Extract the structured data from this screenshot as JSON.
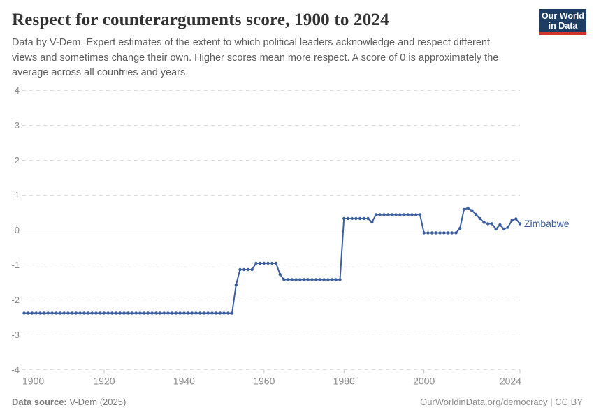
{
  "header": {
    "title": "Respect for counterarguments score, 1900 to 2024",
    "subtitle_lines": [
      "Data by V-Dem. Expert estimates of the extent to which political leaders acknowledge and respect different",
      "views and sometimes change their own. Higher scores mean more respect. A score of 0 is approximately the",
      "average across all countries and years."
    ],
    "logo": {
      "line1": "Our World",
      "line2": "in Data",
      "bg_color": "#1d3d63",
      "accent_color": "#d2352b"
    }
  },
  "entity_label": "Zimbabwe",
  "footer": {
    "source_label": "Data source:",
    "source_value": " V-Dem (2025)",
    "url": "OurWorldinData.org/democracy",
    "separator": " | ",
    "license": "CC BY"
  },
  "chart_data": {
    "type": "line",
    "title": "Respect for counterarguments score, 1900 to 2024",
    "xlabel": "",
    "ylabel": "",
    "xlim": [
      1900,
      2024
    ],
    "ylim": [
      -4,
      4
    ],
    "xticks": [
      1900,
      1920,
      1940,
      1960,
      1980,
      2000,
      2024
    ],
    "yticks": [
      4,
      3,
      2,
      1,
      0,
      -1,
      -2,
      -3,
      -4
    ],
    "grid": "horizontal dashed gridlines, solid line at y=0",
    "legend": "series label at right end of line",
    "colors": {
      "line": "#3d5f9e",
      "gridline": "#dcdcdc",
      "zero_line": "#a3a3a3",
      "tick_label": "#8a8a8a",
      "tick_mark": "#c4c4c4"
    },
    "series": [
      {
        "name": "Zimbabwe",
        "color": "#3d5f9e",
        "points": [
          [
            1900,
            -2.38
          ],
          [
            1901,
            -2.38
          ],
          [
            1902,
            -2.38
          ],
          [
            1903,
            -2.38
          ],
          [
            1904,
            -2.38
          ],
          [
            1905,
            -2.38
          ],
          [
            1906,
            -2.38
          ],
          [
            1907,
            -2.38
          ],
          [
            1908,
            -2.38
          ],
          [
            1909,
            -2.38
          ],
          [
            1910,
            -2.38
          ],
          [
            1911,
            -2.38
          ],
          [
            1912,
            -2.38
          ],
          [
            1913,
            -2.38
          ],
          [
            1914,
            -2.38
          ],
          [
            1915,
            -2.38
          ],
          [
            1916,
            -2.38
          ],
          [
            1917,
            -2.38
          ],
          [
            1918,
            -2.38
          ],
          [
            1919,
            -2.38
          ],
          [
            1920,
            -2.38
          ],
          [
            1921,
            -2.38
          ],
          [
            1922,
            -2.38
          ],
          [
            1923,
            -2.38
          ],
          [
            1924,
            -2.38
          ],
          [
            1925,
            -2.38
          ],
          [
            1926,
            -2.38
          ],
          [
            1927,
            -2.38
          ],
          [
            1928,
            -2.38
          ],
          [
            1929,
            -2.38
          ],
          [
            1930,
            -2.38
          ],
          [
            1931,
            -2.38
          ],
          [
            1932,
            -2.38
          ],
          [
            1933,
            -2.38
          ],
          [
            1934,
            -2.38
          ],
          [
            1935,
            -2.38
          ],
          [
            1936,
            -2.38
          ],
          [
            1937,
            -2.38
          ],
          [
            1938,
            -2.38
          ],
          [
            1939,
            -2.38
          ],
          [
            1940,
            -2.38
          ],
          [
            1941,
            -2.38
          ],
          [
            1942,
            -2.38
          ],
          [
            1943,
            -2.38
          ],
          [
            1944,
            -2.38
          ],
          [
            1945,
            -2.38
          ],
          [
            1946,
            -2.38
          ],
          [
            1947,
            -2.38
          ],
          [
            1948,
            -2.38
          ],
          [
            1949,
            -2.38
          ],
          [
            1950,
            -2.38
          ],
          [
            1951,
            -2.38
          ],
          [
            1952,
            -2.38
          ],
          [
            1953,
            -1.57
          ],
          [
            1954,
            -1.13
          ],
          [
            1955,
            -1.13
          ],
          [
            1956,
            -1.13
          ],
          [
            1957,
            -1.13
          ],
          [
            1958,
            -0.95
          ],
          [
            1959,
            -0.95
          ],
          [
            1960,
            -0.95
          ],
          [
            1961,
            -0.95
          ],
          [
            1962,
            -0.95
          ],
          [
            1963,
            -0.95
          ],
          [
            1964,
            -1.27
          ],
          [
            1965,
            -1.42
          ],
          [
            1966,
            -1.42
          ],
          [
            1967,
            -1.42
          ],
          [
            1968,
            -1.42
          ],
          [
            1969,
            -1.42
          ],
          [
            1970,
            -1.42
          ],
          [
            1971,
            -1.42
          ],
          [
            1972,
            -1.42
          ],
          [
            1973,
            -1.42
          ],
          [
            1974,
            -1.42
          ],
          [
            1975,
            -1.42
          ],
          [
            1976,
            -1.42
          ],
          [
            1977,
            -1.42
          ],
          [
            1978,
            -1.42
          ],
          [
            1979,
            -1.42
          ],
          [
            1980,
            0.33
          ],
          [
            1981,
            0.33
          ],
          [
            1982,
            0.33
          ],
          [
            1983,
            0.33
          ],
          [
            1984,
            0.33
          ],
          [
            1985,
            0.33
          ],
          [
            1986,
            0.33
          ],
          [
            1987,
            0.23
          ],
          [
            1988,
            0.44
          ],
          [
            1989,
            0.44
          ],
          [
            1990,
            0.44
          ],
          [
            1991,
            0.44
          ],
          [
            1992,
            0.44
          ],
          [
            1993,
            0.44
          ],
          [
            1994,
            0.44
          ],
          [
            1995,
            0.44
          ],
          [
            1996,
            0.44
          ],
          [
            1997,
            0.44
          ],
          [
            1998,
            0.44
          ],
          [
            1999,
            0.44
          ],
          [
            2000,
            -0.08
          ],
          [
            2001,
            -0.08
          ],
          [
            2002,
            -0.08
          ],
          [
            2003,
            -0.08
          ],
          [
            2004,
            -0.08
          ],
          [
            2005,
            -0.08
          ],
          [
            2006,
            -0.08
          ],
          [
            2007,
            -0.08
          ],
          [
            2008,
            -0.08
          ],
          [
            2009,
            0.05
          ],
          [
            2010,
            0.59
          ],
          [
            2011,
            0.63
          ],
          [
            2012,
            0.56
          ],
          [
            2013,
            0.45
          ],
          [
            2014,
            0.33
          ],
          [
            2015,
            0.22
          ],
          [
            2016,
            0.18
          ],
          [
            2017,
            0.18
          ],
          [
            2018,
            0.03
          ],
          [
            2019,
            0.15
          ],
          [
            2020,
            0.03
          ],
          [
            2021,
            0.08
          ],
          [
            2022,
            0.28
          ],
          [
            2023,
            0.32
          ],
          [
            2024,
            0.18
          ]
        ]
      }
    ]
  }
}
